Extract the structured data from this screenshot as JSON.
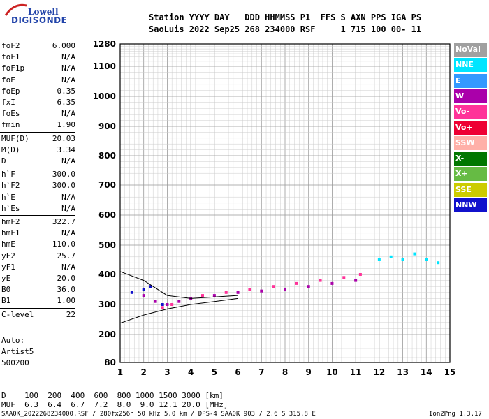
{
  "logo": {
    "line1": "Lowell",
    "line2": "DIGISONDE"
  },
  "header": {
    "line1": "Station YYYY DAY   DDD HHMMSS P1  FFS S AXN PPS IGA PS",
    "line2": "SaoLuis 2022 Sep25 268 234000 RSF     1 715 100 00- 11"
  },
  "params": [
    {
      "name": "foF2",
      "value": "6.000"
    },
    {
      "name": "foF1",
      "value": "N/A"
    },
    {
      "name": "foF1p",
      "value": "N/A"
    },
    {
      "name": "foE",
      "value": "N/A"
    },
    {
      "name": "foEp",
      "value": "0.35"
    },
    {
      "name": "fxI",
      "value": "6.35"
    },
    {
      "name": "foEs",
      "value": "N/A"
    },
    {
      "name": "fmin",
      "value": "1.90"
    },
    {
      "name": "MUF(D)",
      "value": "20.03"
    },
    {
      "name": "M(D)",
      "value": "3.34"
    },
    {
      "name": "D",
      "value": "N/A"
    },
    {
      "name": "h`F",
      "value": "300.0"
    },
    {
      "name": "h`F2",
      "value": "300.0"
    },
    {
      "name": "h`E",
      "value": "N/A"
    },
    {
      "name": "h`Es",
      "value": "N/A"
    },
    {
      "name": "hmF2",
      "value": "322.7"
    },
    {
      "name": "hmF1",
      "value": "N/A"
    },
    {
      "name": "hmE",
      "value": "110.0"
    },
    {
      "name": "yF2",
      "value": "25.7"
    },
    {
      "name": "yF1",
      "value": "N/A"
    },
    {
      "name": "yE",
      "value": "20.0"
    },
    {
      "name": "B0",
      "value": "36.0"
    },
    {
      "name": "B1",
      "value": "1.00"
    },
    {
      "name": "C-level",
      "value": "22"
    }
  ],
  "auto": {
    "line1": "Auto:",
    "line2": "Artist5",
    "line3": "500200"
  },
  "legend": [
    {
      "label": "NoVal",
      "color": "#a0a0a0"
    },
    {
      "label": "NNE",
      "color": "#00e5ff"
    },
    {
      "label": "E",
      "color": "#3399ff"
    },
    {
      "label": "W",
      "color": "#aa00aa"
    },
    {
      "label": "Vo-",
      "color": "#ff3399"
    },
    {
      "label": "Vo+",
      "color": "#ee0033"
    },
    {
      "label": "SSW",
      "color": "#ffb0a8"
    },
    {
      "label": "X-",
      "color": "#007700"
    },
    {
      "label": "X+",
      "color": "#66bb44"
    },
    {
      "label": "SSE",
      "color": "#cccc00"
    },
    {
      "label": "NNW",
      "color": "#1111cc"
    }
  ],
  "footer": {
    "d_row": "D    100  200  400  600  800 1000 1500 3000 [km]",
    "muf_row": "MUF  6.3  6.4  6.7  7.2  8.0  9.0 12.1 20.0 [MHz]",
    "file_info": "SAA0K_2022268234000.RSF / 280fx256h 50 kHz 5.0 km / DPS-4 SAA0K 903 / 2.6 S 315.8 E",
    "version": "Ion2Png 1.3.17"
  },
  "chart_data": {
    "type": "scatter",
    "title": "",
    "xlabel": "",
    "ylabel": "",
    "xlim": [
      1,
      15
    ],
    "ylim": [
      80,
      1280
    ],
    "xticks": [
      "1",
      "2",
      "3",
      "4",
      "5",
      "6",
      "7",
      "8",
      "9",
      "10",
      "11",
      "12",
      "13",
      "14",
      "15"
    ],
    "yticks": [
      {
        "value": 1280,
        "label": "1280"
      },
      {
        "value": 1100,
        "label": "1100"
      },
      {
        "value": 1000,
        "label": "1000"
      },
      {
        "value": 900,
        "label": "900"
      },
      {
        "value": 800,
        "label": "800"
      },
      {
        "value": 700,
        "label": "700"
      },
      {
        "value": 600,
        "label": "600"
      },
      {
        "value": 500,
        "label": "500"
      },
      {
        "value": 400,
        "label": "400"
      },
      {
        "value": 300,
        "label": "300"
      },
      {
        "value": 200,
        "label": "200"
      },
      {
        "value": 80,
        "label": "80"
      }
    ],
    "grid": true,
    "series": [
      {
        "name": "W",
        "points": [
          [
            2.0,
            330
          ],
          [
            2.5,
            310
          ],
          [
            3.0,
            300
          ],
          [
            3.5,
            310
          ],
          [
            4.0,
            320
          ],
          [
            5.0,
            330
          ],
          [
            6.0,
            340
          ],
          [
            7.0,
            345
          ],
          [
            8.0,
            350
          ],
          [
            9.0,
            360
          ],
          [
            10.0,
            370
          ],
          [
            11.0,
            380
          ]
        ]
      },
      {
        "name": "Vo-",
        "points": [
          [
            2.8,
            290
          ],
          [
            3.2,
            300
          ],
          [
            4.5,
            330
          ],
          [
            5.5,
            340
          ],
          [
            6.5,
            350
          ],
          [
            7.5,
            360
          ],
          [
            8.5,
            370
          ],
          [
            9.5,
            380
          ],
          [
            10.5,
            390
          ],
          [
            11.2,
            400
          ]
        ]
      },
      {
        "name": "NNE",
        "points": [
          [
            12.0,
            450
          ],
          [
            12.5,
            460
          ],
          [
            13.0,
            450
          ],
          [
            13.5,
            470
          ],
          [
            14.0,
            450
          ],
          [
            14.5,
            440
          ]
        ]
      },
      {
        "name": "NNW",
        "points": [
          [
            1.5,
            340
          ],
          [
            2.0,
            350
          ],
          [
            2.3,
            360
          ],
          [
            2.8,
            300
          ]
        ]
      }
    ],
    "trace_lines": [
      {
        "name": "ordinary",
        "points": [
          [
            1.0,
            238
          ],
          [
            2.0,
            265
          ],
          [
            3.0,
            285
          ],
          [
            4.0,
            300
          ],
          [
            5.0,
            310
          ],
          [
            6.0,
            320
          ]
        ]
      },
      {
        "name": "extraordinary",
        "points": [
          [
            1.0,
            410
          ],
          [
            2.0,
            380
          ],
          [
            3.0,
            330
          ],
          [
            4.0,
            320
          ],
          [
            5.0,
            325
          ],
          [
            6.0,
            330
          ]
        ]
      }
    ]
  }
}
